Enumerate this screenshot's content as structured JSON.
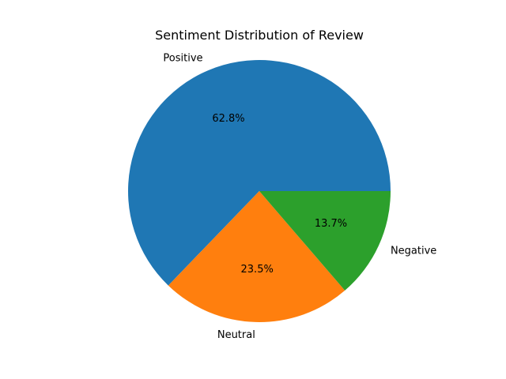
{
  "chart_data": {
    "type": "pie",
    "title": "Sentiment Distribution of Review",
    "categories": [
      "Positive",
      "Neutral",
      "Negative"
    ],
    "values": [
      62.8,
      23.5,
      13.7
    ],
    "value_labels": [
      "62.8%",
      "23.5%",
      "13.7%"
    ],
    "colors": [
      "#1f77b4",
      "#ff7f0e",
      "#2ca02c"
    ],
    "start_angle_deg": 0,
    "direction": "counterclockwise",
    "legend": "none"
  }
}
